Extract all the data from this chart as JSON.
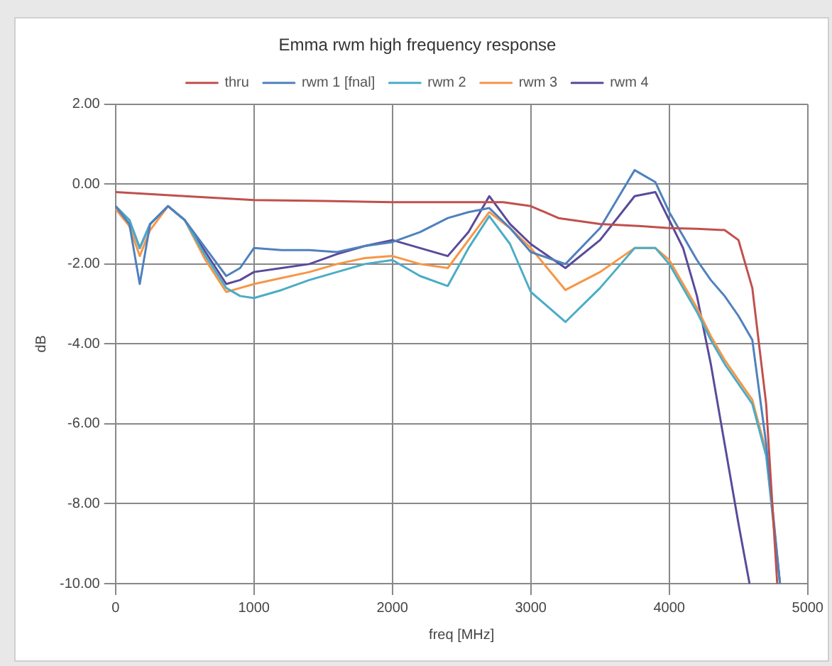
{
  "chart_data": {
    "type": "line",
    "title": "Emma rwm high frequency response",
    "xlabel": "freq [MHz]",
    "ylabel": "dB",
    "legend": "top",
    "grid": true,
    "marker": "none",
    "line_style": "solid",
    "xlim": [
      0,
      5000
    ],
    "xticks": [
      0,
      1000,
      2000,
      3000,
      4000,
      5000
    ],
    "ylim": [
      -10,
      2
    ],
    "yticks": [
      {
        "value": -10,
        "label": "-10.00"
      },
      {
        "value": -8,
        "label": "-8.00"
      },
      {
        "value": -6,
        "label": "-6.00"
      },
      {
        "value": -4,
        "label": "-4.00"
      },
      {
        "value": -2,
        "label": "-2.00"
      },
      {
        "value": 0,
        "label": "0.00"
      },
      {
        "value": 2,
        "label": "2.00"
      }
    ],
    "series": [
      {
        "name": "thru",
        "color": "#c0504d",
        "x": [
          0,
          500,
          1000,
          1500,
          2000,
          2500,
          2800,
          3000,
          3200,
          3500,
          3800,
          4000,
          4200,
          4400,
          4500,
          4600,
          4700,
          4780
        ],
        "values": [
          -0.2,
          -0.3,
          -0.4,
          -0.42,
          -0.45,
          -0.45,
          -0.45,
          -0.55,
          -0.85,
          -1.0,
          -1.05,
          -1.1,
          -1.12,
          -1.15,
          -1.4,
          -2.6,
          -5.5,
          -10
        ]
      },
      {
        "name": "rwm 1 [fnal]",
        "color": "#4f81bd",
        "x": [
          0,
          100,
          175,
          250,
          380,
          500,
          650,
          800,
          900,
          1000,
          1200,
          1400,
          1600,
          1800,
          2000,
          2200,
          2400,
          2550,
          2700,
          2850,
          3000,
          3250,
          3500,
          3750,
          3900,
          4000,
          4100,
          4200,
          4300,
          4400,
          4500,
          4600,
          4700,
          4800
        ],
        "values": [
          -0.55,
          -1.0,
          -2.5,
          -1.0,
          -0.55,
          -0.9,
          -1.6,
          -2.3,
          -2.1,
          -1.6,
          -1.65,
          -1.65,
          -1.7,
          -1.55,
          -1.45,
          -1.2,
          -0.85,
          -0.7,
          -0.6,
          -1.1,
          -1.7,
          -2.0,
          -1.1,
          0.35,
          0.05,
          -0.7,
          -1.3,
          -1.9,
          -2.4,
          -2.8,
          -3.3,
          -3.9,
          -6.5,
          -10
        ]
      },
      {
        "name": "rwm 2",
        "color": "#4bacc6",
        "x": [
          0,
          100,
          175,
          250,
          380,
          500,
          650,
          800,
          900,
          1000,
          1200,
          1400,
          1600,
          1800,
          2000,
          2200,
          2400,
          2550,
          2700,
          2850,
          3000,
          3250,
          3500,
          3750,
          3900,
          4000,
          4100,
          4200,
          4300,
          4400,
          4500,
          4600,
          4700,
          4800
        ],
        "values": [
          -0.55,
          -0.9,
          -1.6,
          -1.0,
          -0.55,
          -0.9,
          -1.8,
          -2.6,
          -2.8,
          -2.85,
          -2.65,
          -2.4,
          -2.2,
          -2.0,
          -1.9,
          -2.3,
          -2.55,
          -1.6,
          -0.8,
          -1.5,
          -2.7,
          -3.45,
          -2.6,
          -1.6,
          -1.6,
          -2.0,
          -2.6,
          -3.2,
          -3.9,
          -4.5,
          -5.0,
          -5.5,
          -6.8,
          -10
        ]
      },
      {
        "name": "rwm 3",
        "color": "#f79646",
        "x": [
          0,
          100,
          175,
          250,
          380,
          500,
          650,
          800,
          900,
          1000,
          1200,
          1400,
          1600,
          1800,
          2000,
          2200,
          2400,
          2550,
          2700,
          2850,
          3000,
          3250,
          3500,
          3750,
          3900,
          4000,
          4100,
          4200,
          4300,
          4400,
          4500,
          4600,
          4700,
          4800
        ],
        "values": [
          -0.62,
          -1.05,
          -1.8,
          -1.15,
          -0.55,
          -0.9,
          -1.9,
          -2.7,
          -2.6,
          -2.5,
          -2.35,
          -2.2,
          -2.0,
          -1.85,
          -1.8,
          -2.0,
          -2.1,
          -1.4,
          -0.7,
          -1.1,
          -1.6,
          -2.65,
          -2.2,
          -1.6,
          -1.6,
          -1.9,
          -2.5,
          -3.1,
          -3.8,
          -4.4,
          -4.9,
          -5.4,
          -6.7,
          -10
        ]
      },
      {
        "name": "rwm 4",
        "color": "#5a4a9a",
        "x": [
          0,
          100,
          175,
          250,
          380,
          500,
          650,
          800,
          900,
          1000,
          1200,
          1400,
          1600,
          1800,
          2000,
          2200,
          2400,
          2550,
          2700,
          2850,
          3000,
          3250,
          3500,
          3750,
          3900,
          4000,
          4100,
          4200,
          4300,
          4400,
          4500,
          4580
        ],
        "values": [
          -0.55,
          -0.9,
          -1.6,
          -1.0,
          -0.55,
          -0.9,
          -1.7,
          -2.5,
          -2.4,
          -2.2,
          -2.1,
          -2.0,
          -1.75,
          -1.55,
          -1.4,
          -1.6,
          -1.8,
          -1.2,
          -0.3,
          -1.0,
          -1.5,
          -2.1,
          -1.4,
          -0.3,
          -0.2,
          -0.9,
          -1.6,
          -2.8,
          -4.5,
          -6.5,
          -8.5,
          -10
        ]
      }
    ]
  }
}
